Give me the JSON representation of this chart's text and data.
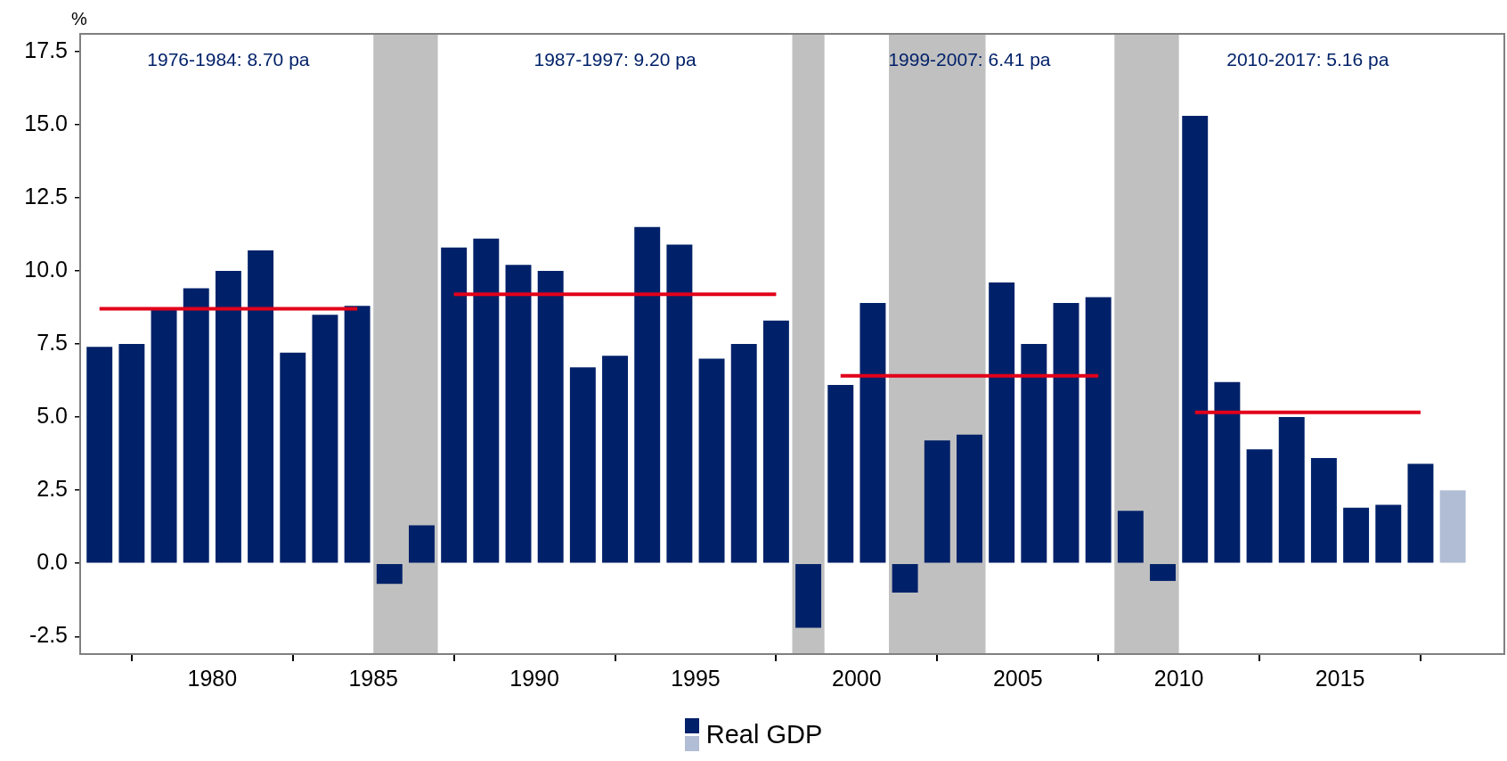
{
  "chart_data": {
    "type": "bar",
    "ylabel": "%",
    "xlim": [
      1975.9,
      2020.1
    ],
    "xticks": [
      1980,
      1985,
      1990,
      1995,
      2000,
      2005,
      2010,
      2015
    ],
    "ylim": [
      -3.1,
      18.1
    ],
    "yticks": [
      {
        "value": -2.5,
        "label": "-2.5"
      },
      {
        "value": 0,
        "label": "0.0"
      },
      {
        "value": 2.5,
        "label": "2.5"
      },
      {
        "value": 5,
        "label": "5.0"
      },
      {
        "value": 7.5,
        "label": "7.5"
      },
      {
        "value": 10,
        "label": "10.0"
      },
      {
        "value": 12.5,
        "label": "12.5"
      },
      {
        "value": 15,
        "label": "15.0"
      },
      {
        "value": 17.5,
        "label": "17.5"
      }
    ],
    "grid": false,
    "legend": "bottom",
    "marker": "none",
    "series": [
      {
        "name": "Real GDP",
        "x": [
          1976.5,
          1977.5,
          1978.5,
          1979.5,
          1980.5,
          1981.5,
          1982.5,
          1983.5,
          1984.5,
          1985.5,
          1986.5,
          1987.5,
          1988.5,
          1989.5,
          1990.5,
          1991.5,
          1992.5,
          1993.5,
          1994.5,
          1995.5,
          1996.5,
          1997.5,
          1998.5,
          1999.5,
          2000.5,
          2001.5,
          2002.5,
          2003.5,
          2004.5,
          2005.5,
          2006.5,
          2007.5,
          2008.5,
          2009.5,
          2010.5,
          2011.5,
          2012.5,
          2013.5,
          2014.5,
          2015.5,
          2016.5,
          2017.5,
          2018.5
        ],
        "values": [
          7.4,
          7.5,
          8.7,
          9.4,
          10.0,
          10.7,
          7.2,
          8.5,
          8.8,
          -0.7,
          1.3,
          10.8,
          11.1,
          10.2,
          10.0,
          6.7,
          7.1,
          11.5,
          10.9,
          7.0,
          7.5,
          8.3,
          -2.2,
          6.1,
          8.9,
          -1.0,
          4.2,
          4.4,
          9.6,
          7.5,
          8.9,
          9.1,
          1.8,
          -0.6,
          15.3,
          6.2,
          3.9,
          5.0,
          3.6,
          1.9,
          2.0,
          3.4,
          2.5
        ],
        "colors": [
          "#002169",
          "#002169",
          "#002169",
          "#002169",
          "#002169",
          "#002169",
          "#002169",
          "#002169",
          "#002169",
          "#002169",
          "#002169",
          "#002169",
          "#002169",
          "#002169",
          "#002169",
          "#002169",
          "#002169",
          "#002169",
          "#002169",
          "#002169",
          "#002169",
          "#002169",
          "#002169",
          "#002169",
          "#002169",
          "#002169",
          "#002169",
          "#002169",
          "#002169",
          "#002169",
          "#002169",
          "#002169",
          "#002169",
          "#002169",
          "#002169",
          "#002169",
          "#002169",
          "#002169",
          "#002169",
          "#002169",
          "#002169",
          "#002169",
          "#b1bdd4"
        ]
      },
      {
        "type": "line",
        "color": "#e2001a",
        "x": [
          1976.5,
          1984.5
        ],
        "values": [
          8.7,
          8.7
        ]
      },
      {
        "type": "line",
        "color": "#e2001a",
        "x": [
          1987.5,
          1997.5
        ],
        "values": [
          9.2,
          9.2
        ]
      },
      {
        "type": "line",
        "color": "#e2001a",
        "x": [
          1999.5,
          2007.5
        ],
        "values": [
          6.41,
          6.41
        ]
      },
      {
        "type": "line",
        "color": "#e2001a",
        "x": [
          2010.5,
          2017.5
        ],
        "values": [
          5.16,
          5.16
        ]
      }
    ],
    "bands": [
      {
        "axis": "x",
        "from": 1985,
        "to": 1987,
        "color": "#c0c0c0"
      },
      {
        "axis": "x",
        "from": 1998,
        "to": 1999,
        "color": "#c0c0c0"
      },
      {
        "axis": "x",
        "from": 2001,
        "to": 2004,
        "color": "#c0c0c0"
      },
      {
        "axis": "x",
        "from": 2008,
        "to": 2010,
        "color": "#c0c0c0"
      }
    ],
    "annotations": [
      "1976-1984: 8.70 pa",
      "1987-1997: 9.20 pa",
      "1999-2007: 6.41 pa",
      "2010-2017: 5.16 pa"
    ]
  }
}
